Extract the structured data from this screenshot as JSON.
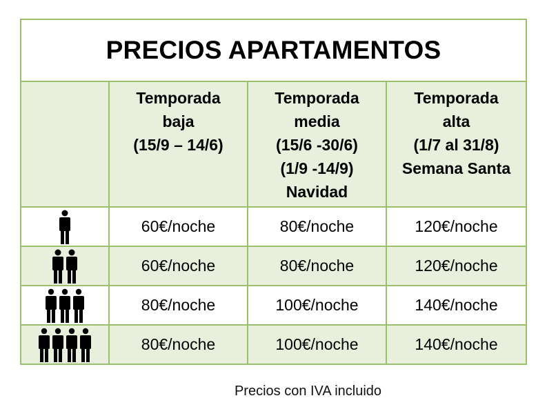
{
  "title": "PRECIOS APARTAMENTOS",
  "seasons": [
    {
      "lines": [
        "Temporada",
        "baja",
        "(15/9 – 14/6)"
      ]
    },
    {
      "lines": [
        "Temporada",
        "media",
        "(15/6 -30/6)",
        "(1/9 -14/9)",
        "Navidad"
      ]
    },
    {
      "lines": [
        "Temporada",
        "alta",
        "(1/7 al 31/8)",
        "Semana Santa"
      ]
    }
  ],
  "rows": [
    {
      "people_icon": "one-person-icon",
      "people": 1,
      "prices": [
        "60€/noche",
        "80€/noche",
        "120€/noche"
      ]
    },
    {
      "people_icon": "two-people-icon",
      "people": 2,
      "prices": [
        "60€/noche",
        "80€/noche",
        "120€/noche"
      ]
    },
    {
      "people_icon": "three-people-icon",
      "people": 3,
      "prices": [
        "80€/noche",
        "100€/noche",
        "140€/noche"
      ]
    },
    {
      "people_icon": "four-people-icon",
      "people": 4,
      "prices": [
        "80€/noche",
        "100€/noche",
        "140€/noche"
      ]
    }
  ],
  "footnote": "Precios con IVA incluido",
  "colors": {
    "border": "#9bbf6a",
    "band": "#e8efdc"
  }
}
